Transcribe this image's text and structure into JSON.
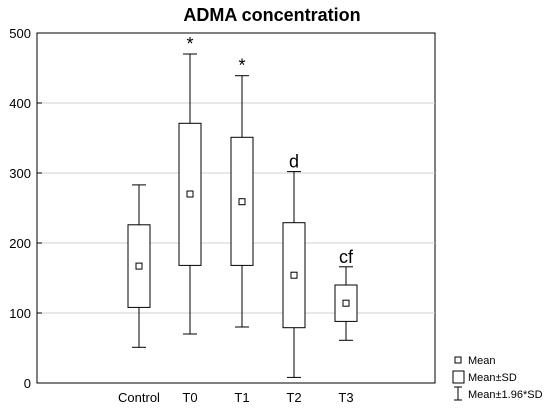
{
  "chart_data": {
    "type": "box",
    "title": "ADMA concentration",
    "xlabel": "",
    "ylabel": "",
    "ylim": [
      0,
      500
    ],
    "yticks": [
      0,
      100,
      200,
      300,
      400,
      500
    ],
    "grid": "horizontal",
    "categories": [
      "Control",
      "T0",
      "T1",
      "T2",
      "T3"
    ],
    "mean": [
      167,
      270,
      259,
      154,
      114
    ],
    "sd_low": [
      108,
      168,
      168,
      79,
      88
    ],
    "sd_high": [
      226,
      371,
      351,
      229,
      140
    ],
    "ci196_low": [
      51,
      70,
      80,
      8,
      61
    ],
    "ci196_high": [
      283,
      470,
      439,
      302,
      166
    ],
    "annotations": [
      "",
      "*",
      "*",
      "d",
      "cf"
    ],
    "legend": {
      "position": "bottom-right",
      "items": [
        {
          "symbol": "square",
          "label": "Mean"
        },
        {
          "symbol": "box",
          "label": "Mean±SD"
        },
        {
          "symbol": "whisker",
          "label": "Mean±1.96*SD"
        }
      ]
    }
  }
}
